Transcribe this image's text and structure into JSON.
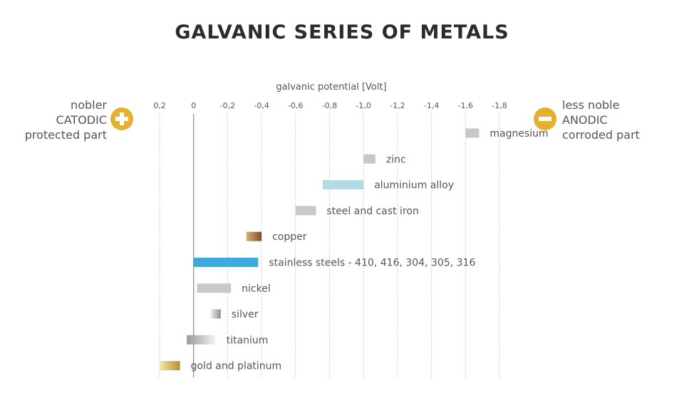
{
  "chart_data": {
    "type": "bar",
    "title": "GALVANIC SERIES OF METALS",
    "xlabel": "galvanic potential [Volt]",
    "x_ticks": [
      "0,2",
      "0",
      "-0,2",
      "-0,4",
      "-0,6",
      "-0,8",
      "-1,0",
      "-1,2",
      "-1,4",
      "-1,6",
      "-1,8"
    ],
    "xlim": [
      0.2,
      -1.8
    ],
    "grid": true,
    "series": [
      {
        "name": "magnesium",
        "range": [
          -1.6,
          -1.68
        ],
        "color": "#c8c8c8"
      },
      {
        "name": "zinc",
        "range": [
          -1.0,
          -1.07
        ],
        "color": "#c8c8c8"
      },
      {
        "name": "aluminium alloy",
        "range": [
          -0.76,
          -1.0
        ],
        "color": "#b2dbe8"
      },
      {
        "name": "steel and cast iron",
        "range": [
          -0.6,
          -0.72
        ],
        "color": "#c8c8c8"
      },
      {
        "name": "copper",
        "range": [
          -0.31,
          -0.4
        ],
        "color": "#9a6a3a"
      },
      {
        "name": "stainless steels - 410, 416, 304, 305, 316",
        "range": [
          0.0,
          -0.38
        ],
        "color": "#3fa9dc"
      },
      {
        "name": "nickel",
        "range": [
          -0.02,
          -0.22
        ],
        "color": "#c8c8c8"
      },
      {
        "name": "silver",
        "range": [
          -0.1,
          -0.16
        ],
        "color": "#b0b0b0"
      },
      {
        "name": "titanium",
        "range": [
          0.04,
          -0.13
        ],
        "color": "#a8a8a8"
      },
      {
        "name": "gold and platinum",
        "range": [
          0.2,
          0.08
        ],
        "color": "#d6b24a"
      }
    ]
  },
  "left_side": {
    "line1": "nobler",
    "line2": "CATODIC",
    "line3": "protected part",
    "icon": "plus-icon"
  },
  "right_side": {
    "line1": "less noble",
    "line2": "ANODIC",
    "line3": "corroded part",
    "icon": "minus-icon"
  },
  "colors": {
    "accent": "#e5b030",
    "axis": "#888888",
    "grid": "#bbbbbb"
  }
}
